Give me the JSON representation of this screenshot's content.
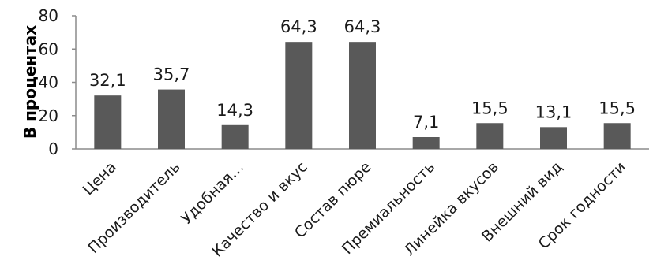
{
  "chart_data": {
    "type": "bar",
    "ylabel": "В процентах",
    "ylim": [
      0,
      80
    ],
    "yticks": [
      0,
      20,
      40,
      60,
      80
    ],
    "grid": false,
    "categories": [
      "Цена",
      "Производитель",
      "Удобная…",
      "Качество и вкус",
      "Состав пюре",
      "Премиальность",
      "Линейка вкусов",
      "Внешний вид",
      "Срок годности"
    ],
    "values": [
      32.1,
      35.7,
      14.3,
      64.3,
      64.3,
      7.1,
      15.5,
      13.1,
      15.5
    ],
    "value_labels": [
      "32,1",
      "35,7",
      "14,3",
      "64,3",
      "64,3",
      "7,1",
      "15,5",
      "13,1",
      "15,5"
    ],
    "bar_color": "#595959"
  }
}
